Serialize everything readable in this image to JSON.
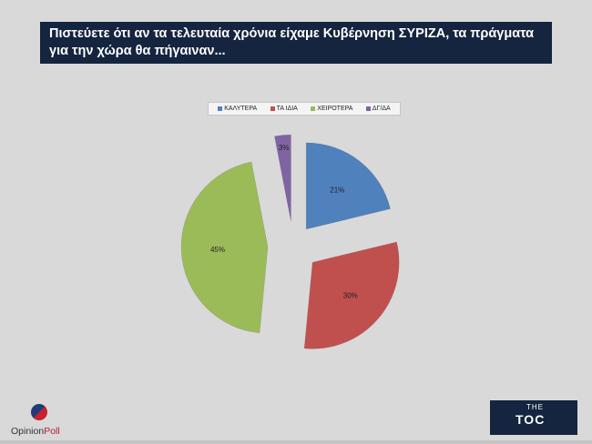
{
  "header": {
    "title": "Πιστεύετε ότι αν τα τελευταία χρόνια είχαμε Κυβέρνηση ΣΥΡΙΖΑ, τα πράγματα για την χώρα θα πήγαιναν..."
  },
  "chart_data": {
    "type": "pie",
    "title": "",
    "categories": [
      "ΚΑΛΥΤΕΡΑ",
      "ΤΑ ΙΔΙΑ",
      "ΧΕΙΡΟΤΕΡΑ",
      "ΔΓ/ΔΑ"
    ],
    "values": [
      21,
      30,
      45,
      3
    ],
    "value_labels": [
      "21%",
      "30%",
      "45%",
      "3%"
    ],
    "colors": [
      "#4f81bd",
      "#c0504d",
      "#9bbb59",
      "#8064a2"
    ],
    "exploded": true,
    "legend_position": "top"
  },
  "legend": {
    "items": [
      {
        "label": "ΚΑΛΥΤΕΡΑ",
        "color": "#4f81bd"
      },
      {
        "label": "ΤΑ ΙΔΙΑ",
        "color": "#c0504d"
      },
      {
        "label": "ΧΕΙΡΟΤΕΡΑ",
        "color": "#9bbb59"
      },
      {
        "label": "ΔΓ/ΔΑ",
        "color": "#8064a2"
      }
    ]
  },
  "logos": {
    "left_part1": "Opinion",
    "left_part2": "Poll",
    "right_small": "THE",
    "right_main": "TOC"
  }
}
